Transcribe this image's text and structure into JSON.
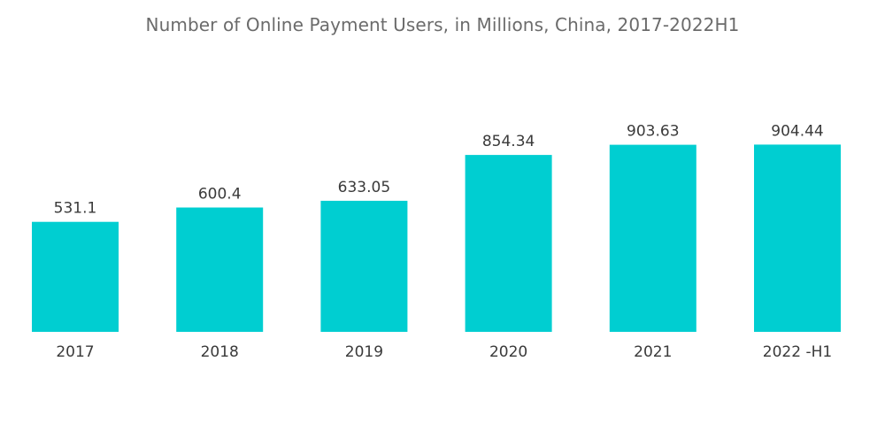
{
  "chart_data": {
    "type": "bar",
    "title": "Number of Online Payment Users, in Millions, China, 2017-2022H1",
    "categories": [
      "2017",
      "2018",
      "2019",
      "2020",
      "2021",
      "2022 -H1"
    ],
    "values": [
      531.1,
      600.4,
      633.05,
      854.34,
      903.63,
      904.44
    ],
    "value_labels": [
      "531.1",
      "600.4",
      "633.05",
      "854.34",
      "903.63",
      "904.44"
    ],
    "xlabel": "",
    "ylabel": "",
    "ylim": [
      0,
      1000
    ],
    "grid": false,
    "legend": "none",
    "bar_color": "#00CED1"
  }
}
